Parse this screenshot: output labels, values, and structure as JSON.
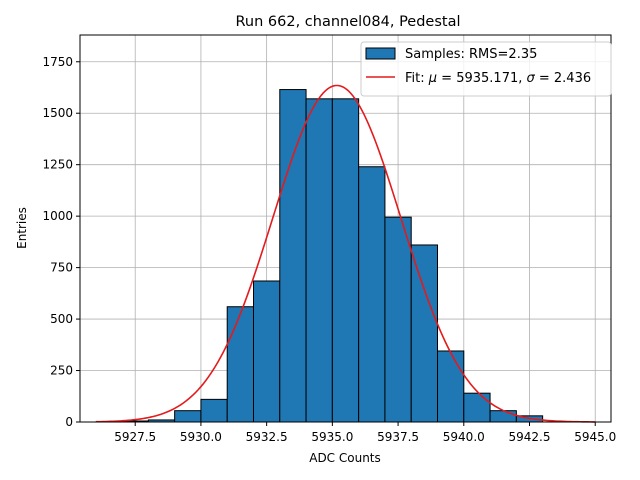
{
  "chart_data": {
    "type": "bar",
    "title": "Run 662, channel084, Pedestal",
    "xlabel": "ADC Counts",
    "ylabel": "Entries",
    "xlim": [
      5925.4,
      5945.6
    ],
    "ylim": [
      0,
      1880
    ],
    "x_ticks": [
      5927.5,
      5930.0,
      5932.5,
      5935.0,
      5937.5,
      5940.0,
      5942.5,
      5945.0
    ],
    "x_tick_labels": [
      "5927.5",
      "5930.0",
      "5932.5",
      "5935.0",
      "5937.5",
      "5940.0",
      "5942.5",
      "5945.0"
    ],
    "y_ticks": [
      0,
      250,
      500,
      750,
      1000,
      1250,
      1500,
      1750
    ],
    "y_tick_labels": [
      "0",
      "250",
      "500",
      "750",
      "1000",
      "1250",
      "1500",
      "1750"
    ],
    "grid": true,
    "legend_position": "top-right",
    "histogram": {
      "bin_edges": [
        5927,
        5928,
        5929,
        5930,
        5931,
        5932,
        5933,
        5934,
        5935,
        5936,
        5937,
        5938,
        5939,
        5940,
        5941,
        5942,
        5943
      ],
      "counts": [
        5,
        10,
        55,
        110,
        560,
        685,
        1615,
        1570,
        1570,
        1240,
        995,
        860,
        345,
        140,
        55,
        30
      ],
      "label": "Samples: RMS=2.35",
      "color": "#1f77b4"
    },
    "fit": {
      "label_prefix": "Fit: ",
      "mu_symbol": "μ",
      "mu_value": " = 5935.171, ",
      "sigma_symbol": "σ",
      "sigma_value": " = 2.436",
      "mu": 5935.171,
      "sigma": 2.436,
      "amplitude": 1635,
      "x_range": [
        5926,
        5945
      ],
      "color": "#e41a1c"
    }
  }
}
